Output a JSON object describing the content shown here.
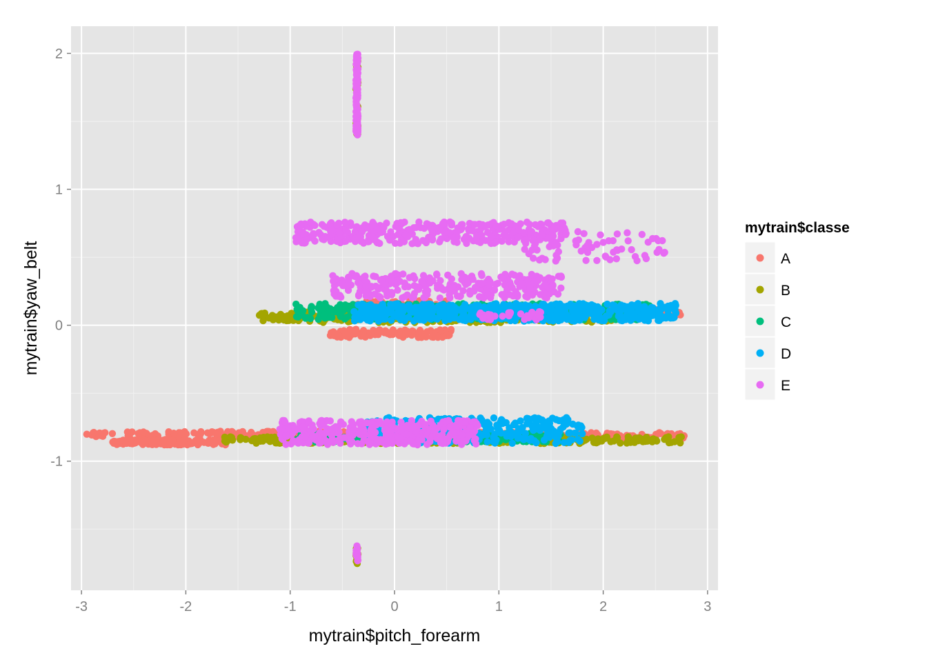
{
  "chart_data": {
    "type": "scatter",
    "xlabel": "mytrain$pitch_forearm",
    "ylabel": "mytrain$yaw_belt",
    "xlim": [
      -3.1,
      3.1
    ],
    "ylim": [
      -1.95,
      2.2
    ],
    "x_ticks": [
      -3,
      -2,
      -1,
      0,
      1,
      2,
      3
    ],
    "x_tick_labels": [
      "-3",
      "-2",
      "-1",
      "0",
      "1",
      "2",
      "3"
    ],
    "y_ticks": [
      -1,
      0,
      1,
      2
    ],
    "y_tick_labels": [
      "-1",
      "0",
      "1",
      "2"
    ],
    "grid": true,
    "legend": {
      "title": "mytrain$classe",
      "placement": "right"
    },
    "series": [
      {
        "name": "A",
        "color": "#F8766D",
        "clusters": [
          {
            "x": [
              -2.95,
              1.45
            ],
            "y": [
              -0.82,
              -0.78
            ],
            "n": 320
          },
          {
            "x": [
              -2.7,
              -1.6
            ],
            "y": [
              -0.88,
              -0.84
            ],
            "n": 140
          },
          {
            "x": [
              1.3,
              2.8
            ],
            "y": [
              -0.83,
              -0.79
            ],
            "n": 90
          },
          {
            "x": [
              -0.65,
              0.55
            ],
            "y": [
              -0.09,
              -0.03
            ],
            "n": 110
          },
          {
            "x": [
              -0.4,
              0.5
            ],
            "y": [
              0.1,
              0.18
            ],
            "n": 80
          },
          {
            "x": [
              1.9,
              2.75
            ],
            "y": [
              0.06,
              0.12
            ],
            "n": 60
          }
        ]
      },
      {
        "name": "B",
        "color": "#A3A500",
        "clusters": [
          {
            "x": [
              -1.65,
              2.75
            ],
            "y": [
              -0.87,
              -0.82
            ],
            "n": 300
          },
          {
            "x": [
              -1.3,
              -0.9
            ],
            "y": [
              0.03,
              0.09
            ],
            "n": 30
          },
          {
            "x": [
              -0.95,
              2.2
            ],
            "y": [
              0.02,
              0.1
            ],
            "n": 220
          },
          {
            "x": [
              -0.37,
              -0.35
            ],
            "y": [
              1.4,
              2.0
            ],
            "n": 30
          },
          {
            "x": [
              -0.37,
              -0.35
            ],
            "y": [
              -1.76,
              -1.64
            ],
            "n": 12
          }
        ]
      },
      {
        "name": "C",
        "color": "#00BF7D",
        "clusters": [
          {
            "x": [
              -0.95,
              1.6
            ],
            "y": [
              -0.86,
              -0.79
            ],
            "n": 200
          },
          {
            "x": [
              -0.95,
              2.45
            ],
            "y": [
              0.04,
              0.16
            ],
            "n": 380
          }
        ]
      },
      {
        "name": "D",
        "color": "#00B0F6",
        "clusters": [
          {
            "x": [
              -0.3,
              1.8
            ],
            "y": [
              -0.87,
              -0.68
            ],
            "n": 300
          },
          {
            "x": [
              -0.4,
              2.7
            ],
            "y": [
              0.03,
              0.16
            ],
            "n": 560
          }
        ]
      },
      {
        "name": "E",
        "color": "#E76BF3",
        "clusters": [
          {
            "x": [
              -0.37,
              -0.35
            ],
            "y": [
              1.4,
              2.0
            ],
            "n": 110
          },
          {
            "x": [
              -0.37,
              -0.35
            ],
            "y": [
              -1.74,
              -1.62
            ],
            "n": 14
          },
          {
            "x": [
              -0.95,
              1.65
            ],
            "y": [
              0.6,
              0.76
            ],
            "n": 380
          },
          {
            "x": [
              1.2,
              2.6
            ],
            "y": [
              0.47,
              0.7
            ],
            "n": 70
          },
          {
            "x": [
              -0.6,
              1.6
            ],
            "y": [
              0.2,
              0.38
            ],
            "n": 280
          },
          {
            "x": [
              -1.1,
              0.8
            ],
            "y": [
              -0.88,
              -0.7
            ],
            "n": 380
          },
          {
            "x": [
              0.8,
              1.4
            ],
            "y": [
              0.04,
              0.1
            ],
            "n": 40
          }
        ]
      }
    ]
  }
}
